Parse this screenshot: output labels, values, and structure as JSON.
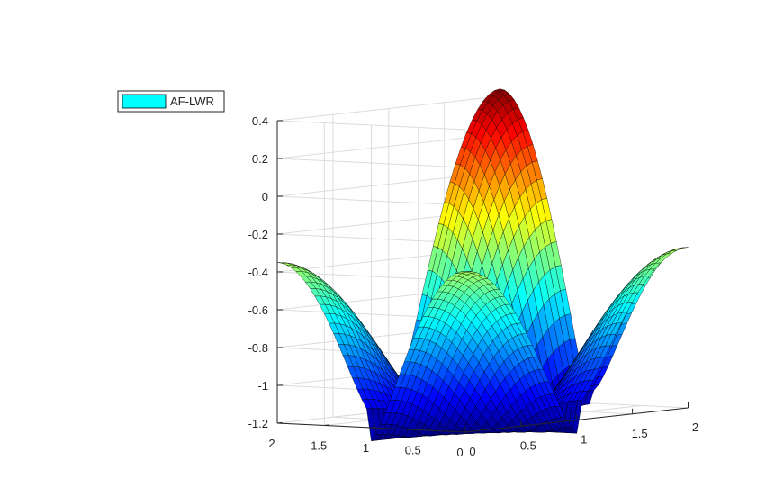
{
  "chart_data": {
    "type": "surface",
    "legend": {
      "label": "AF-LWR",
      "swatch_color": "#00FFFF",
      "location": "top-left"
    },
    "colormap": "jet",
    "grid": true,
    "box": true,
    "x": {
      "lim": [
        0,
        2
      ],
      "ticks": [
        0,
        0.5,
        1,
        1.5,
        2
      ],
      "tick_labels": [
        "0",
        "0.5",
        "1",
        "1.5",
        "2"
      ]
    },
    "y": {
      "lim": [
        0,
        2
      ],
      "ticks": [
        0,
        0.5,
        1,
        1.5,
        2
      ],
      "tick_labels": [
        "0",
        "0.5",
        "1",
        "1.5",
        "2"
      ]
    },
    "z": {
      "lim": [
        -1.2,
        0.4
      ],
      "ticks": [
        -1.2,
        -1,
        -0.8,
        -0.6,
        -0.4,
        -0.2,
        0,
        0.2,
        0.4
      ],
      "tick_labels": [
        "-1.2",
        "-1",
        "-0.8",
        "-0.6",
        "-0.4",
        "-0.2",
        "0",
        "0.2",
        "0.4"
      ]
    },
    "surface": {
      "grid_points": 41,
      "peak": {
        "x": 2,
        "y": 2,
        "z": 0.44
      },
      "minima": [
        {
          "x": 0,
          "y": 0,
          "z": -1.27
        },
        {
          "x": 2,
          "y": 0,
          "z": -1.13
        },
        {
          "x": 0,
          "y": 2,
          "z": -1.13
        }
      ],
      "side_peaks": [
        {
          "x": 1,
          "y": 2,
          "z": -0.35
        },
        {
          "x": 2,
          "y": 1,
          "z": -0.35
        }
      ],
      "ridges": [
        "x = 1",
        "y = 1"
      ]
    }
  }
}
